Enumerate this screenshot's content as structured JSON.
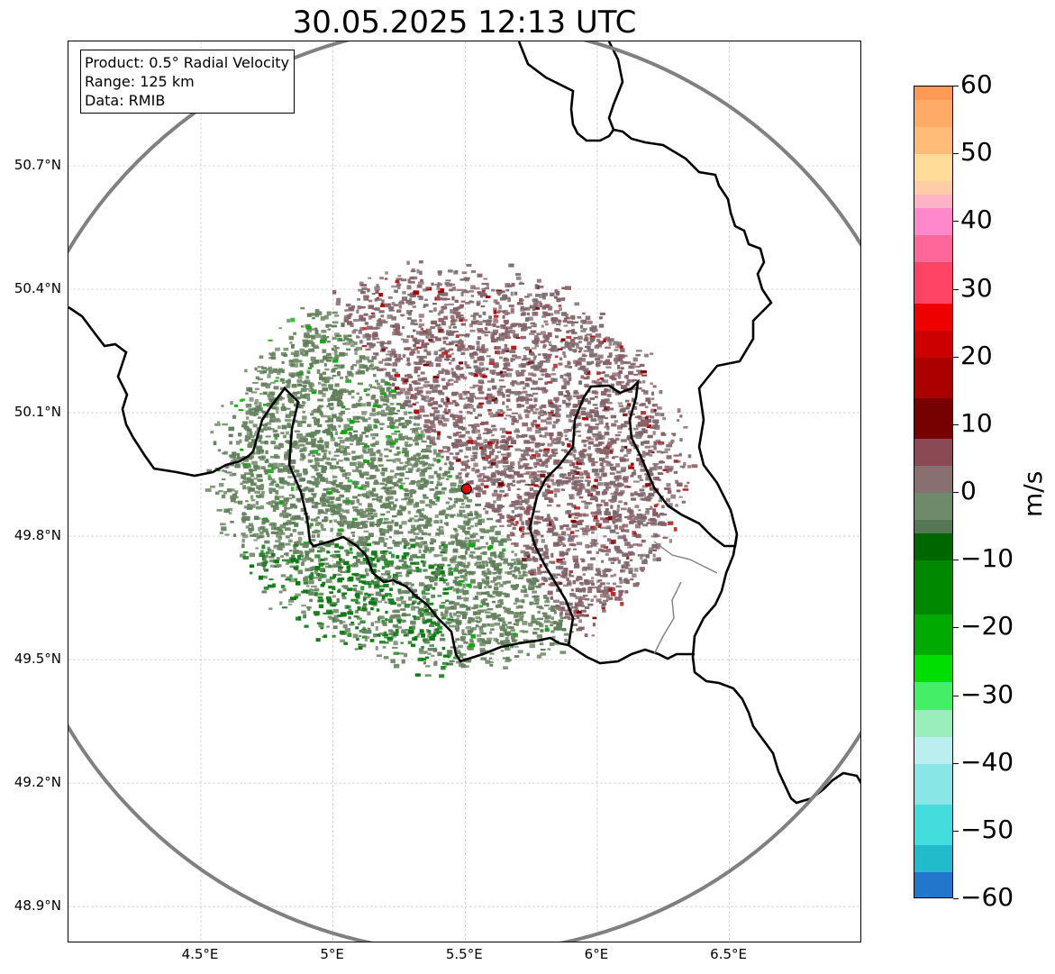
{
  "title": "30.05.2025 12:13 UTC",
  "info": {
    "product": "Product: 0.5° Radial Velocity",
    "range": "Range: 125 km",
    "source": "Data: RMIB"
  },
  "axes": {
    "lat_ticks": [
      "50.7°N",
      "50.4°N",
      "50.1°N",
      "49.8°N",
      "49.5°N",
      "49.2°N",
      "48.9°N"
    ],
    "lat_values": [
      50.7,
      50.4,
      50.1,
      49.8,
      49.5,
      49.2,
      48.9
    ],
    "lon_ticks": [
      "4.5°E",
      "5°E",
      "5.5°E",
      "6°E",
      "6.5°E"
    ],
    "lon_values": [
      4.5,
      5.0,
      5.5,
      6.0,
      6.5
    ],
    "lon_range": [
      4.0,
      7.0
    ],
    "lat_range": [
      48.8,
      51.0
    ]
  },
  "radar": {
    "site_lon": 5.505,
    "site_lat": 49.915,
    "range_km": 125
  },
  "colorbar": {
    "label": "m/s",
    "ticks": [
      "60",
      "50",
      "40",
      "30",
      "20",
      "10",
      "0",
      "−10",
      "−20",
      "−30",
      "−40",
      "−50",
      "−60"
    ],
    "tick_values": [
      60,
      50,
      40,
      30,
      20,
      10,
      0,
      -10,
      -20,
      -30,
      -40,
      -50,
      -60
    ],
    "range": [
      -60,
      60
    ],
    "bands": [
      {
        "from": 58,
        "to": 60,
        "color": "#ff9955"
      },
      {
        "from": 54,
        "to": 58,
        "color": "#ffaa66"
      },
      {
        "from": 50,
        "to": 54,
        "color": "#ffbb77"
      },
      {
        "from": 46,
        "to": 50,
        "color": "#ffdd99"
      },
      {
        "from": 44,
        "to": 46,
        "color": "#ffccaa"
      },
      {
        "from": 42,
        "to": 44,
        "color": "#ffb3c6"
      },
      {
        "from": 38,
        "to": 42,
        "color": "#ff88cc"
      },
      {
        "from": 34,
        "to": 38,
        "color": "#ff6699"
      },
      {
        "from": 28,
        "to": 34,
        "color": "#ff4466"
      },
      {
        "from": 24,
        "to": 28,
        "color": "#ee0000"
      },
      {
        "from": 20,
        "to": 24,
        "color": "#cc0000"
      },
      {
        "from": 14,
        "to": 20,
        "color": "#aa0000"
      },
      {
        "from": 8,
        "to": 14,
        "color": "#770000"
      },
      {
        "from": 4,
        "to": 8,
        "color": "#8a4a55"
      },
      {
        "from": 0,
        "to": 4,
        "color": "#887070"
      },
      {
        "from": -4,
        "to": 0,
        "color": "#6e8a6a"
      },
      {
        "from": -6,
        "to": -4,
        "color": "#557755"
      },
      {
        "from": -10,
        "to": -6,
        "color": "#006600"
      },
      {
        "from": -18,
        "to": -10,
        "color": "#008800"
      },
      {
        "from": -24,
        "to": -18,
        "color": "#00aa00"
      },
      {
        "from": -28,
        "to": -24,
        "color": "#00dd00"
      },
      {
        "from": -32,
        "to": -28,
        "color": "#44ee66"
      },
      {
        "from": -36,
        "to": -32,
        "color": "#99eebb"
      },
      {
        "from": -40,
        "to": -36,
        "color": "#bbeeee"
      },
      {
        "from": -46,
        "to": -40,
        "color": "#88e6e6"
      },
      {
        "from": -52,
        "to": -46,
        "color": "#44dddd"
      },
      {
        "from": -56,
        "to": -52,
        "color": "#22bbcc"
      },
      {
        "from": -60,
        "to": -56,
        "color": "#2277cc"
      }
    ]
  },
  "colors": {
    "receding": "#8a5f66",
    "approaching": "#5e7f58",
    "strong_approaching": "#0a7a10",
    "range_ring": "#808080",
    "border": "#000000",
    "site_marker": "#e00000"
  }
}
